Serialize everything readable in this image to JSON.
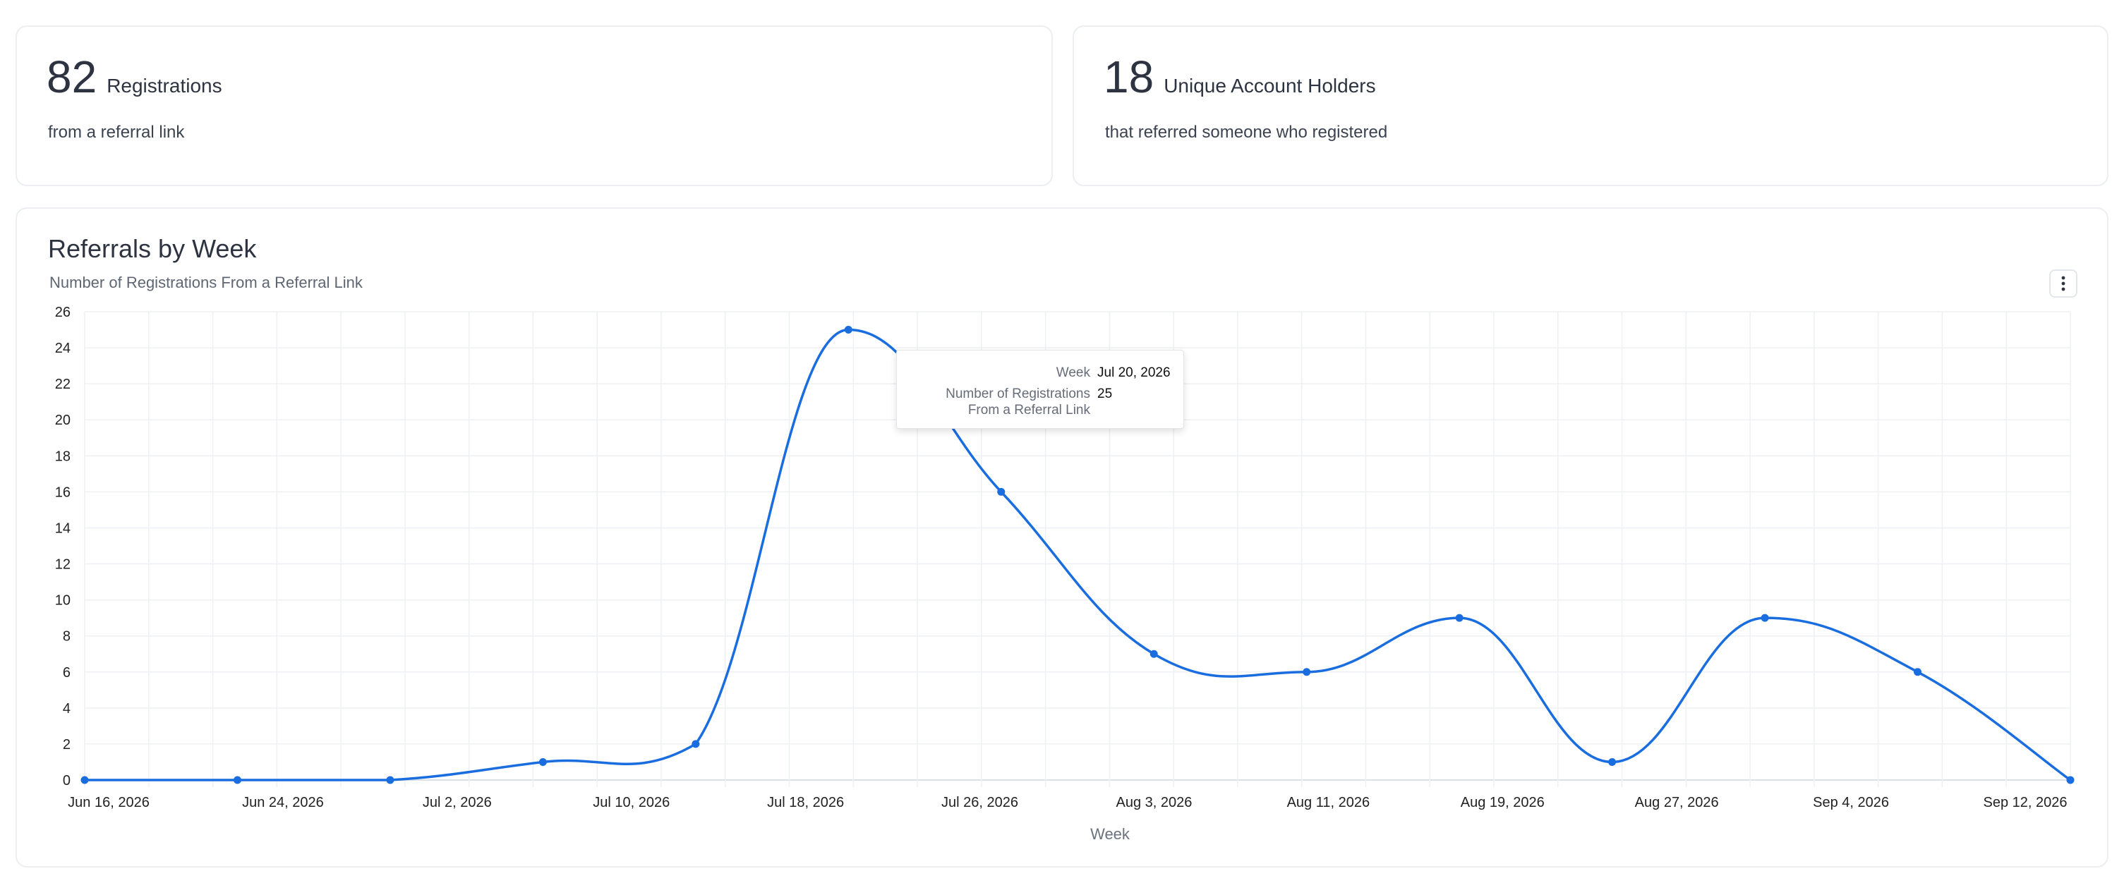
{
  "stats": [
    {
      "number": "82",
      "label": "Registrations",
      "sub": "from a referral link"
    },
    {
      "number": "18",
      "label": "Unique Account Holders",
      "sub": "that referred someone who registered"
    }
  ],
  "chart_card": {
    "title": "Referrals by Week",
    "subtitle": "Number of Registrations From a Referral Link",
    "menu_icon": "vertical-ellipsis-icon"
  },
  "colors": {
    "line": "#1a6ddf",
    "grid": "#eef0f3",
    "text": "#2d3340"
  },
  "tooltip": {
    "week_key": "Week",
    "week_value": "Jul 20, 2026",
    "count_key_line1": "Number of Registrations",
    "count_key_line2": "From a Referral Link",
    "count_value": "25"
  },
  "chart_data": {
    "type": "line",
    "title": "Referrals by Week",
    "subtitle": "Number of Registrations From a Referral Link",
    "xlabel": "Week",
    "ylabel": "",
    "x": [
      "Jun 15, 2026",
      "Jun 22, 2026",
      "Jun 29, 2026",
      "Jul 6, 2026",
      "Jul 13, 2026",
      "Jul 20, 2026",
      "Jul 27, 2026",
      "Aug 3, 2026",
      "Aug 10, 2026",
      "Aug 17, 2026",
      "Aug 24, 2026",
      "Aug 31, 2026",
      "Sep 7, 2026",
      "Sep 14, 2026"
    ],
    "series": [
      {
        "values": [
          0,
          0,
          0,
          1,
          2,
          25,
          16,
          7,
          6,
          9,
          1,
          9,
          6,
          0
        ]
      }
    ],
    "x_tick_labels": [
      "Jun 16, 2026",
      "Jun 24, 2026",
      "Jul 2, 2026",
      "Jul 10, 2026",
      "Jul 18, 2026",
      "Jul 26, 2026",
      "Aug 3, 2026",
      "Aug 11, 2026",
      "Aug 19, 2026",
      "Aug 27, 2026",
      "Sep 4, 2026",
      "Sep 12, 2026"
    ],
    "y_ticks": [
      0,
      2,
      4,
      6,
      8,
      10,
      12,
      14,
      16,
      18,
      20,
      22,
      24,
      26
    ],
    "ylim": [
      0,
      26
    ],
    "grid": true,
    "legend": "none",
    "highlighted_point": "Jul 20, 2026"
  }
}
